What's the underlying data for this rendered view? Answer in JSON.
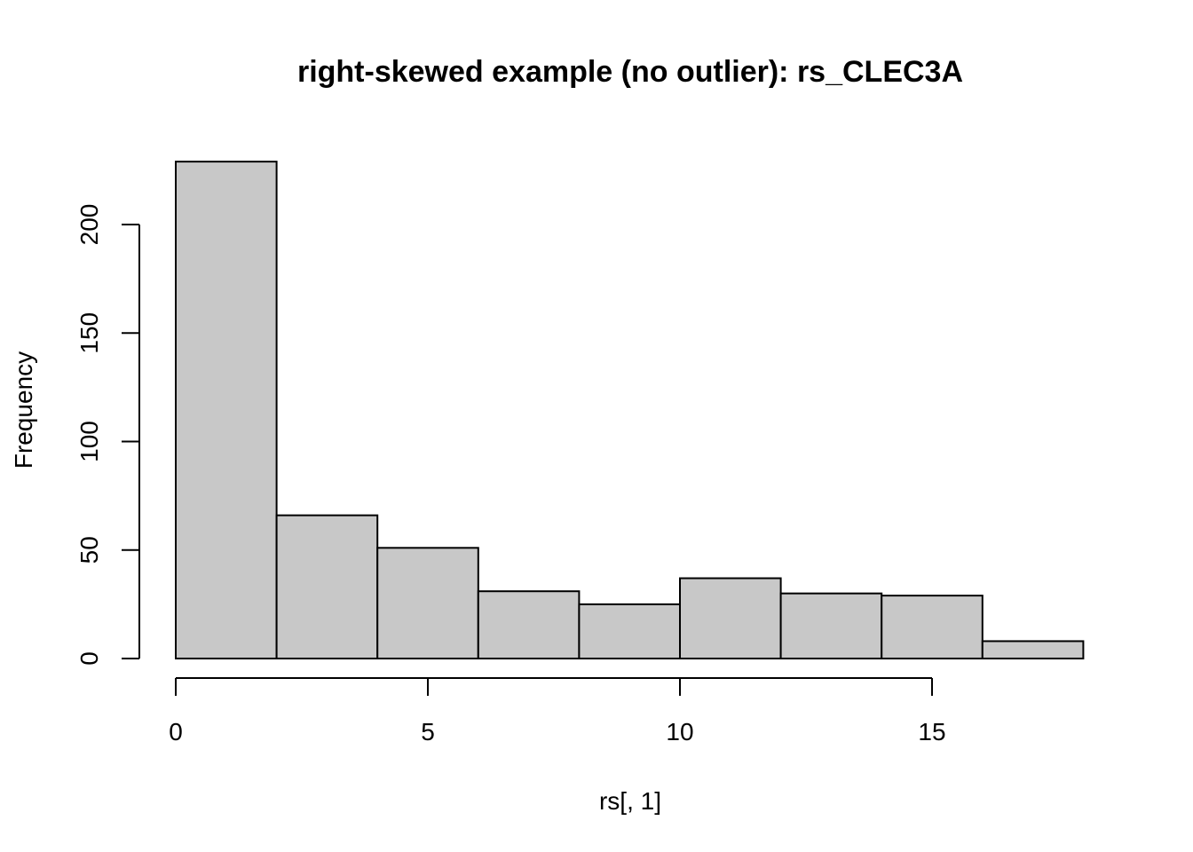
{
  "chart_data": {
    "type": "bar",
    "title": "right-skewed example (no outlier): rs_CLEC3A",
    "xlabel": "rs[, 1]",
    "ylabel": "Frequency",
    "bins": [
      {
        "x0": 0,
        "x1": 2,
        "count": 229
      },
      {
        "x0": 2,
        "x1": 4,
        "count": 66
      },
      {
        "x0": 4,
        "x1": 6,
        "count": 51
      },
      {
        "x0": 6,
        "x1": 8,
        "count": 31
      },
      {
        "x0": 8,
        "x1": 10,
        "count": 25
      },
      {
        "x0": 10,
        "x1": 12,
        "count": 37
      },
      {
        "x0": 12,
        "x1": 14,
        "count": 30
      },
      {
        "x0": 14,
        "x1": 16,
        "count": 29
      },
      {
        "x0": 16,
        "x1": 18,
        "count": 8
      }
    ],
    "xlim": [
      0,
      18
    ],
    "ylim": [
      0,
      229
    ],
    "x_ticks": [
      "0",
      "5",
      "10",
      "15"
    ],
    "y_ticks": [
      "0",
      "50",
      "100",
      "150",
      "200"
    ],
    "bar_color": "#c8c8c8",
    "grid": false,
    "legend": "none"
  }
}
